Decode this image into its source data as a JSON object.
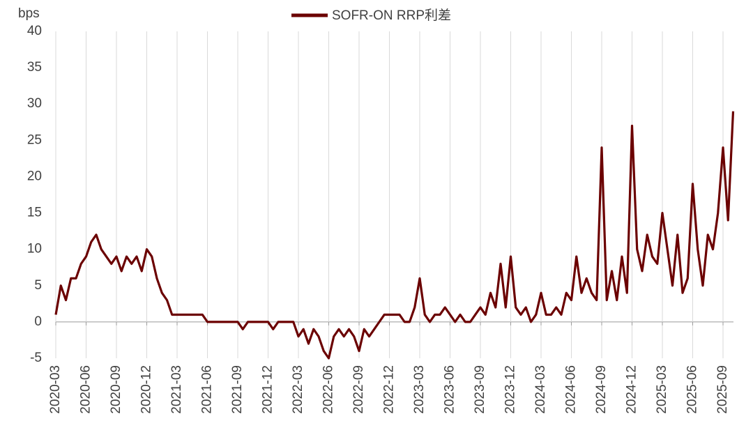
{
  "chart_data": {
    "type": "line",
    "y_label": "bps",
    "categories": [
      "2020-03",
      null,
      null,
      null,
      null,
      null,
      "2020-06",
      null,
      null,
      null,
      null,
      null,
      "2020-09",
      null,
      null,
      null,
      null,
      null,
      "2020-12",
      null,
      null,
      null,
      null,
      null,
      "2021-03",
      null,
      null,
      null,
      null,
      null,
      "2021-06",
      null,
      null,
      null,
      null,
      null,
      "2021-09",
      null,
      null,
      null,
      null,
      null,
      "2021-12",
      null,
      null,
      null,
      null,
      null,
      "2022-03",
      null,
      null,
      null,
      null,
      null,
      "2022-06",
      null,
      null,
      null,
      null,
      null,
      "2022-09",
      null,
      null,
      null,
      null,
      null,
      "2022-12",
      null,
      null,
      null,
      null,
      null,
      "2023-03",
      null,
      null,
      null,
      null,
      null,
      "2023-06",
      null,
      null,
      null,
      null,
      null,
      "2023-09",
      null,
      null,
      null,
      null,
      null,
      "2023-12",
      null,
      null,
      null,
      null,
      null,
      "2024-03",
      null,
      null,
      null,
      null,
      null,
      "2024-06",
      null,
      null,
      null,
      null,
      null,
      "2024-09",
      null,
      null,
      null,
      null,
      null,
      "2024-12",
      null,
      null,
      null,
      null,
      null,
      "2025-03",
      null,
      null,
      null,
      null,
      null,
      "2025-06",
      null,
      null,
      null,
      null,
      null,
      "2025-09",
      null,
      null
    ],
    "series": [
      {
        "name": "SOFR-ON  RRP利差",
        "color": "#6b0000",
        "values": [
          1,
          5,
          3,
          6,
          6,
          8,
          9,
          11,
          12,
          10,
          9,
          8,
          9,
          7,
          9,
          8,
          9,
          7,
          10,
          9,
          6,
          4,
          3,
          1,
          1,
          1,
          1,
          1,
          1,
          1,
          0,
          0,
          0,
          0,
          0,
          0,
          0,
          -1,
          0,
          0,
          0,
          0,
          0,
          -1,
          0,
          0,
          0,
          0,
          -2,
          -1,
          -3,
          -1,
          -2,
          -4,
          -5,
          -2,
          -1,
          -2,
          -1,
          -2,
          -4,
          -1,
          -2,
          -1,
          0,
          1,
          1,
          1,
          1,
          0,
          0,
          2,
          6,
          1,
          0,
          1,
          1,
          2,
          1,
          0,
          1,
          0,
          0,
          1,
          2,
          1,
          4,
          2,
          8,
          2,
          9,
          2,
          1,
          2,
          0,
          1,
          4,
          1,
          1,
          2,
          1,
          4,
          3,
          9,
          4,
          6,
          4,
          3,
          24,
          3,
          7,
          3,
          9,
          4,
          27,
          10,
          7,
          12,
          9,
          8,
          15,
          10,
          5,
          12,
          4,
          6,
          19,
          10,
          5,
          12,
          10,
          15,
          24,
          14,
          29
        ]
      }
    ],
    "ylim": [
      -5,
      40
    ],
    "yticks": [
      -5,
      0,
      5,
      10,
      15,
      20,
      25,
      30,
      35,
      40
    ],
    "grid": "x",
    "legend": "top"
  }
}
